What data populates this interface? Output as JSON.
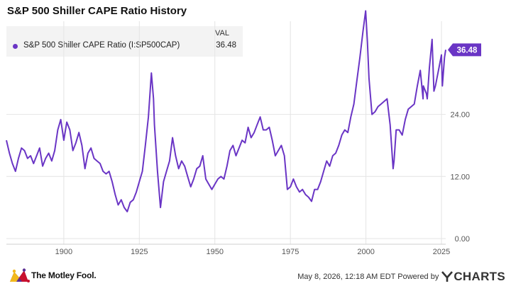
{
  "title": "S&P 500 Shiller CAPE Ratio History",
  "legend": {
    "header": "VAL",
    "series_label": "S&P 500 Shiller CAPE Ratio (I:SP500CAP)",
    "series_value": "36.48"
  },
  "footer": {
    "brand": "The Motley Fool.",
    "timestamp": "May 8, 2026, 12:18 AM EDT Powered by",
    "provider": "CHARTS",
    "provider_icon": "ycharts-y-icon",
    "brand_icon": "jester-hat-icon"
  },
  "colors": {
    "series": "#6a35c5",
    "grid": "#e4e4e4",
    "axis_text": "#555555"
  },
  "chart_data": {
    "type": "line",
    "title": "S&P 500 Shiller CAPE Ratio History",
    "xlabel": "",
    "ylabel": "",
    "xlim": [
      1881,
      2026.4
    ],
    "ylim": [
      0,
      42
    ],
    "y_ticks": [
      0,
      12,
      24
    ],
    "y_tick_labels": [
      "0.00",
      "12.00",
      "24.00"
    ],
    "x_ticks": [
      1900,
      1925,
      1950,
      1975,
      2000,
      2025
    ],
    "x_tick_labels": [
      "1900",
      "1925",
      "1950",
      "1975",
      "2000",
      "2025"
    ],
    "grid": true,
    "legend_position": "top-left",
    "last_value_label": "36.48",
    "series": [
      {
        "name": "S&P 500 Shiller CAPE Ratio (I:SP500CAP)",
        "x": [
          1881,
          1882,
          1883,
          1884,
          1885,
          1886,
          1887,
          1888,
          1889,
          1890,
          1891,
          1892,
          1893,
          1894,
          1895,
          1896,
          1897,
          1898,
          1899,
          1900,
          1901,
          1902,
          1903,
          1904,
          1905,
          1906,
          1907,
          1908,
          1909,
          1910,
          1911,
          1912,
          1913,
          1914,
          1915,
          1916,
          1917,
          1918,
          1919,
          1920,
          1921,
          1922,
          1923,
          1924,
          1925,
          1926,
          1927,
          1928,
          1929,
          1929.7,
          1930,
          1931,
          1932,
          1933,
          1934,
          1935,
          1936,
          1937,
          1938,
          1939,
          1940,
          1941,
          1942,
          1943,
          1944,
          1945,
          1946,
          1947,
          1948,
          1949,
          1950,
          1951,
          1952,
          1953,
          1954,
          1955,
          1956,
          1957,
          1958,
          1959,
          1960,
          1961,
          1962,
          1963,
          1964,
          1965,
          1966,
          1967,
          1968,
          1969,
          1970,
          1971,
          1972,
          1973,
          1974,
          1975,
          1976,
          1977,
          1978,
          1979,
          1980,
          1981,
          1982,
          1983,
          1984,
          1985,
          1986,
          1987,
          1988,
          1989,
          1990,
          1991,
          1992,
          1993,
          1994,
          1995,
          1996,
          1997,
          1998,
          1999,
          1999.9,
          2000.5,
          2001,
          2002,
          2003,
          2004,
          2005,
          2006,
          2007,
          2008,
          2009,
          2009.3,
          2010,
          2011,
          2012,
          2013,
          2014,
          2015,
          2016,
          2017,
          2018,
          2018.9,
          2019,
          2020,
          2020.3,
          2021,
          2021.9,
          2022.5,
          2023,
          2024,
          2025,
          2025.3,
          2026,
          2026.4
        ],
        "values": [
          19.0,
          16.5,
          14.5,
          13.0,
          15.5,
          17.5,
          17.0,
          15.5,
          16.0,
          14.5,
          16.0,
          17.5,
          14.0,
          15.5,
          16.5,
          15.0,
          17.0,
          21.0,
          23.0,
          19.0,
          22.5,
          21.0,
          17.0,
          18.5,
          20.5,
          18.0,
          13.5,
          16.5,
          17.5,
          15.5,
          15.0,
          14.5,
          13.0,
          12.5,
          13.0,
          11.0,
          8.5,
          6.5,
          7.5,
          6.0,
          5.2,
          7.0,
          7.5,
          9.0,
          11.0,
          13.0,
          18.0,
          23.5,
          32.0,
          27.0,
          22.0,
          13.0,
          6.0,
          11.0,
          13.0,
          15.0,
          19.5,
          16.0,
          13.5,
          15.0,
          14.0,
          12.0,
          10.0,
          11.5,
          13.5,
          14.0,
          16.0,
          11.5,
          10.5,
          9.5,
          10.5,
          11.5,
          12.0,
          11.5,
          14.0,
          17.0,
          18.0,
          16.0,
          17.5,
          19.0,
          18.5,
          21.5,
          19.5,
          20.5,
          22.0,
          23.5,
          21.0,
          21.0,
          21.5,
          19.0,
          16.0,
          17.0,
          18.0,
          16.0,
          9.5,
          10.0,
          11.5,
          10.0,
          9.0,
          9.5,
          8.5,
          8.0,
          7.2,
          9.5,
          9.5,
          11.0,
          13.0,
          15.0,
          14.0,
          16.0,
          16.5,
          18.0,
          20.0,
          21.0,
          20.5,
          23.5,
          26.0,
          30.5,
          35.0,
          40.0,
          44.0,
          38.0,
          31.0,
          24.0,
          24.5,
          25.5,
          26.0,
          26.5,
          27.0,
          22.0,
          13.5,
          15.0,
          21.0,
          21.0,
          20.0,
          23.0,
          25.0,
          25.5,
          26.0,
          29.5,
          32.5,
          27.0,
          29.5,
          28.0,
          27.0,
          33.0,
          38.5,
          28.5,
          29.5,
          32.5,
          35.5,
          29.5,
          35.0,
          36.48
        ]
      }
    ]
  }
}
